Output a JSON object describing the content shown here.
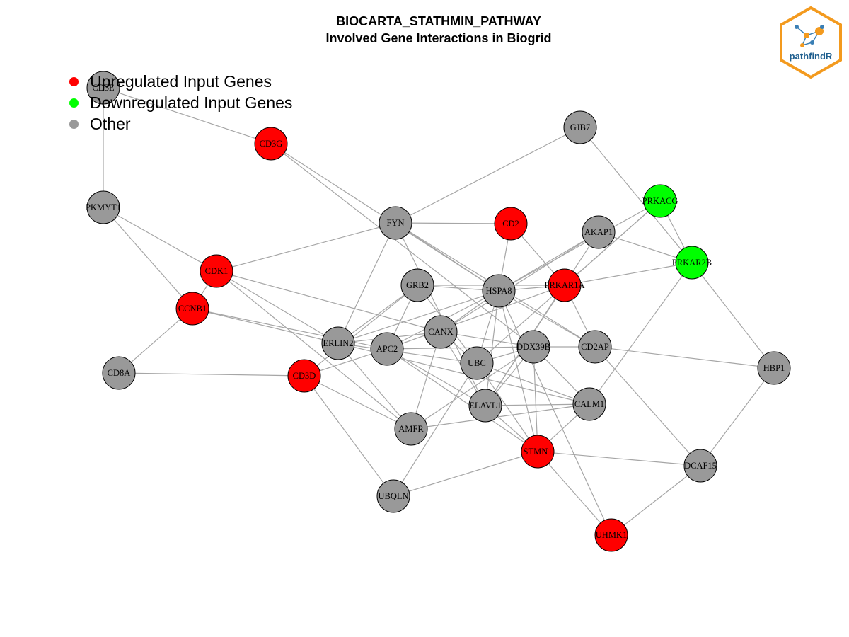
{
  "header": {
    "title_line1": "BIOCARTA_STATHMIN_PATHWAY",
    "title_line2": "Involved Gene Interactions in Biogrid"
  },
  "legend": {
    "items": [
      {
        "label": "Upregulated Input Genes",
        "color": "#ff0000"
      },
      {
        "label": "Downregulated Input Genes",
        "color": "#00ff00"
      },
      {
        "label": "Other",
        "color": "#999999"
      }
    ]
  },
  "logo": {
    "text": "pathfindR"
  },
  "colors": {
    "up": "#ff0000",
    "down": "#00ff00",
    "other": "#999999",
    "edge": "#a6a6a6"
  },
  "network": {
    "nodes": [
      {
        "id": "CD3E",
        "status": "other"
      },
      {
        "id": "CD3G",
        "status": "up"
      },
      {
        "id": "GJB7",
        "status": "other"
      },
      {
        "id": "PKMYT1",
        "status": "other"
      },
      {
        "id": "PRKACG",
        "status": "down"
      },
      {
        "id": "FYN",
        "status": "other"
      },
      {
        "id": "CD2",
        "status": "up"
      },
      {
        "id": "AKAP1",
        "status": "other"
      },
      {
        "id": "PRKAR2B",
        "status": "down"
      },
      {
        "id": "CDK1",
        "status": "up"
      },
      {
        "id": "GRB2",
        "status": "other"
      },
      {
        "id": "HSPA8",
        "status": "other"
      },
      {
        "id": "PRKAR1A",
        "status": "up"
      },
      {
        "id": "CCNB1",
        "status": "up"
      },
      {
        "id": "CANX",
        "status": "other"
      },
      {
        "id": "ERLIN2",
        "status": "other"
      },
      {
        "id": "APC2",
        "status": "other"
      },
      {
        "id": "DDX39B",
        "status": "other"
      },
      {
        "id": "CD2AP",
        "status": "other"
      },
      {
        "id": "UBC",
        "status": "other"
      },
      {
        "id": "HBP1",
        "status": "other"
      },
      {
        "id": "CD8A",
        "status": "other"
      },
      {
        "id": "CD3D",
        "status": "up"
      },
      {
        "id": "ELAVL1",
        "status": "other"
      },
      {
        "id": "CALM1",
        "status": "other"
      },
      {
        "id": "AMFR",
        "status": "other"
      },
      {
        "id": "STMN1",
        "status": "up"
      },
      {
        "id": "DCAF15",
        "status": "other"
      },
      {
        "id": "UBQLN",
        "status": "other"
      },
      {
        "id": "UHMK1",
        "status": "up"
      }
    ],
    "edges": [
      [
        "CD3E",
        "CD3G"
      ],
      [
        "CD3E",
        "PKMYT1"
      ],
      [
        "CD3G",
        "HSPA8"
      ],
      [
        "CD3G",
        "DDX39B"
      ],
      [
        "GJB7",
        "FYN"
      ],
      [
        "GJB7",
        "PRKAR2B"
      ],
      [
        "PKMYT1",
        "CDK1"
      ],
      [
        "PKMYT1",
        "CCNB1"
      ],
      [
        "FYN",
        "CD2"
      ],
      [
        "FYN",
        "CDK1"
      ],
      [
        "FYN",
        "HSPA8"
      ],
      [
        "FYN",
        "CD2AP"
      ],
      [
        "FYN",
        "ERLIN2"
      ],
      [
        "FYN",
        "ELAVL1"
      ],
      [
        "CD2",
        "HSPA8"
      ],
      [
        "CD2",
        "PRKAR1A"
      ],
      [
        "PRKACG",
        "PRKAR2B"
      ],
      [
        "PRKACG",
        "PRKAR1A"
      ],
      [
        "PRKACG",
        "HSPA8"
      ],
      [
        "PRKACG",
        "UBC"
      ],
      [
        "AKAP1",
        "PRKAR2B"
      ],
      [
        "AKAP1",
        "HSPA8"
      ],
      [
        "AKAP1",
        "CANX"
      ],
      [
        "AKAP1",
        "ELAVL1"
      ],
      [
        "PRKAR2B",
        "PRKAR1A"
      ],
      [
        "PRKAR2B",
        "HBP1"
      ],
      [
        "PRKAR2B",
        "CALM1"
      ],
      [
        "CDK1",
        "CCNB1"
      ],
      [
        "CDK1",
        "ERLIN2"
      ],
      [
        "CDK1",
        "CANX"
      ],
      [
        "CDK1",
        "AMFR"
      ],
      [
        "CCNB1",
        "ERLIN2"
      ],
      [
        "CCNB1",
        "APC2"
      ],
      [
        "CCNB1",
        "CD8A"
      ],
      [
        "CD8A",
        "CD3D"
      ],
      [
        "GRB2",
        "HSPA8"
      ],
      [
        "GRB2",
        "PRKAR1A"
      ],
      [
        "GRB2",
        "APC2"
      ],
      [
        "GRB2",
        "UBC"
      ],
      [
        "GRB2",
        "CD3D"
      ],
      [
        "GRB2",
        "ERLIN2"
      ],
      [
        "HSPA8",
        "PRKAR1A"
      ],
      [
        "HSPA8",
        "ERLIN2"
      ],
      [
        "HSPA8",
        "APC2"
      ],
      [
        "HSPA8",
        "UBC"
      ],
      [
        "HSPA8",
        "ELAVL1"
      ],
      [
        "HSPA8",
        "STMN1"
      ],
      [
        "HSPA8",
        "CANX"
      ],
      [
        "HSPA8",
        "CD2AP"
      ],
      [
        "PRKAR1A",
        "ELAVL1"
      ],
      [
        "PRKAR1A",
        "APC2"
      ],
      [
        "PRKAR1A",
        "CD2AP"
      ],
      [
        "CANX",
        "ERLIN2"
      ],
      [
        "CANX",
        "DDX39B"
      ],
      [
        "CANX",
        "AMFR"
      ],
      [
        "CANX",
        "UBC"
      ],
      [
        "CANX",
        "ELAVL1"
      ],
      [
        "ERLIN2",
        "CALM1"
      ],
      [
        "ERLIN2",
        "UBC"
      ],
      [
        "ERLIN2",
        "AMFR"
      ],
      [
        "APC2",
        "STMN1"
      ],
      [
        "APC2",
        "ELAVL1"
      ],
      [
        "APC2",
        "CD3D"
      ],
      [
        "APC2",
        "DDX39B"
      ],
      [
        "DDX39B",
        "CD2AP"
      ],
      [
        "DDX39B",
        "UBC"
      ],
      [
        "DDX39B",
        "STMN1"
      ],
      [
        "DDX39B",
        "CALM1"
      ],
      [
        "DDX39B",
        "ELAVL1"
      ],
      [
        "DDX39B",
        "AMFR"
      ],
      [
        "CD2AP",
        "HBP1"
      ],
      [
        "CD2AP",
        "DCAF15"
      ],
      [
        "UBC",
        "UBQLN"
      ],
      [
        "UBC",
        "STMN1"
      ],
      [
        "UBC",
        "CALM1"
      ],
      [
        "HBP1",
        "DCAF15"
      ],
      [
        "CD3D",
        "UBQLN"
      ],
      [
        "CD3D",
        "AMFR"
      ],
      [
        "ELAVL1",
        "CALM1"
      ],
      [
        "ELAVL1",
        "STMN1"
      ],
      [
        "AMFR",
        "CALM1"
      ],
      [
        "CALM1",
        "STMN1"
      ],
      [
        "STMN1",
        "DCAF15"
      ],
      [
        "STMN1",
        "UBQLN"
      ],
      [
        "STMN1",
        "UHMK1"
      ],
      [
        "DCAF15",
        "UHMK1"
      ],
      [
        "HSPA8",
        "UHMK1"
      ]
    ]
  }
}
